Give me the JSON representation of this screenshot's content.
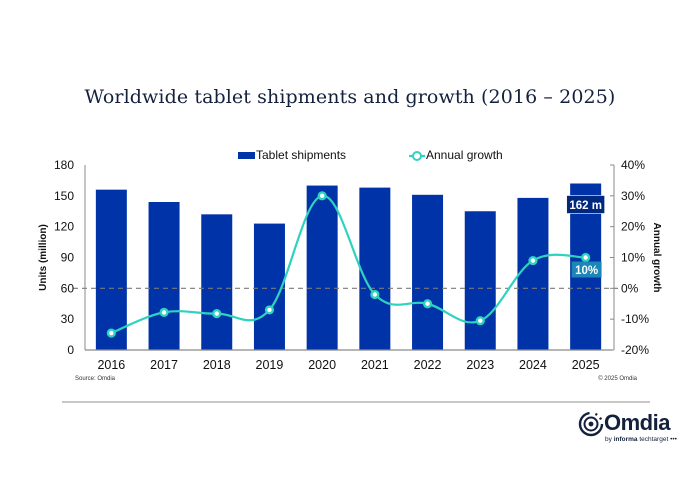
{
  "chart_data": {
    "type": "bar",
    "title": "Worldwide tablet shipments and growth (2016 – 2025)",
    "categories": [
      "2016",
      "2017",
      "2018",
      "2019",
      "2020",
      "2021",
      "2022",
      "2023",
      "2024",
      "2025"
    ],
    "series": [
      {
        "name": "Tablet shipments",
        "type": "bar",
        "axis": "left",
        "color": "#0033a8",
        "values": [
          156,
          144,
          132,
          123,
          160,
          158,
          151,
          135,
          148,
          162
        ]
      },
      {
        "name": "Annual growth",
        "type": "line",
        "axis": "right",
        "color": "#2ed3c0",
        "values": [
          -14.5,
          -7.8,
          -8.2,
          -7.0,
          30.0,
          -2.0,
          -5.0,
          -10.5,
          9.0,
          10.0
        ]
      }
    ],
    "ylabel": "Units (million)",
    "ylim": [
      0,
      180
    ],
    "yticks": [
      "0",
      "30",
      "60",
      "90",
      "120",
      "150",
      "180"
    ],
    "y2label": "Annual growth",
    "y2lim": [
      -20,
      40
    ],
    "y2ticks": [
      "-20%",
      "-10%",
      "0%",
      "10%",
      "20%",
      "30%",
      "40%"
    ],
    "reference_line": {
      "axis": "right",
      "value": 0,
      "style": "dashed"
    },
    "data_labels": [
      {
        "series": "Tablet shipments",
        "category": "2025",
        "text": "162 m"
      },
      {
        "series": "Annual growth",
        "category": "2025",
        "text": "10%"
      }
    ],
    "legend": {
      "position": "top-center",
      "entries": [
        "Tablet shipments",
        "Annual growth"
      ]
    },
    "grid": false
  },
  "footer": {
    "source": "Source: Omdia",
    "copyright": "© 2025 Omdia"
  },
  "brand": {
    "name": "Omdia",
    "tagline_prefix": "by",
    "tagline_bold": "informa",
    "tagline_rest": "techtarget",
    "colors": {
      "navy": "#14213d",
      "bar": "#0033a8",
      "line": "#2ed3c0"
    }
  }
}
